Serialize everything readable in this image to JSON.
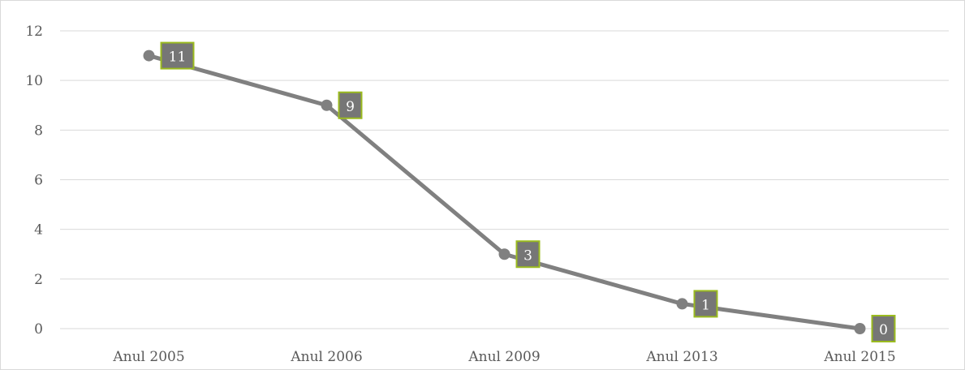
{
  "chart_data": {
    "type": "line",
    "title": "",
    "xlabel": "",
    "ylabel": "",
    "categories": [
      "Anul 2005",
      "Anul 2006",
      "Anul 2009",
      "Anul 2013",
      "Anul 2015"
    ],
    "series": [
      {
        "values": [
          11,
          9,
          3,
          1,
          0
        ]
      }
    ],
    "ylim": [
      0,
      12
    ],
    "yticks": [
      0,
      2,
      4,
      6,
      8,
      10,
      12
    ],
    "grid": "horizontal",
    "legend": "none",
    "data_labels": true,
    "colors": {
      "line": "#808080",
      "marker": "#808080",
      "label_fill": "#767676",
      "label_border": "#9bbb1f",
      "grid": "#d9d9d9",
      "axis_text": "#595959"
    }
  }
}
